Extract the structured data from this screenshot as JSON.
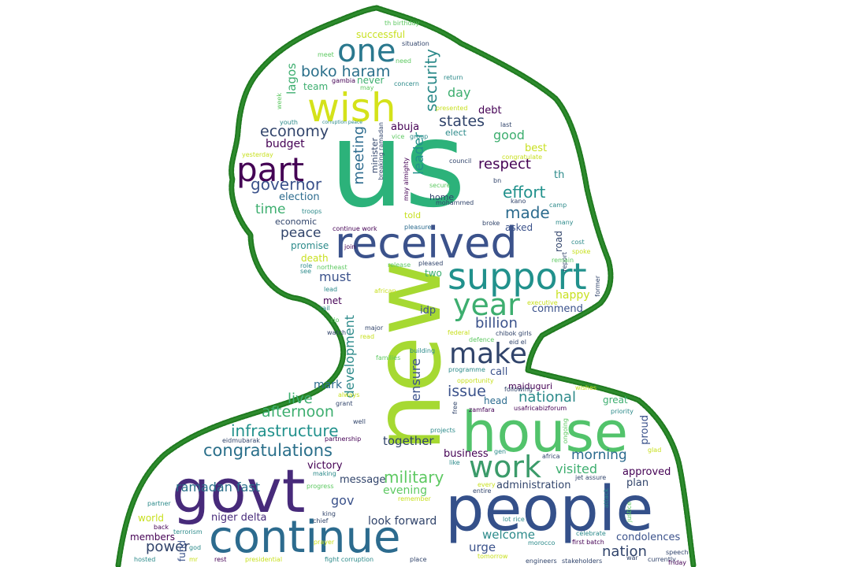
{
  "palette": {
    "outline": "#1f7a1f",
    "background": "#ffffff",
    "word_colors": [
      "#440154",
      "#3b528b",
      "#21918c",
      "#5ec962",
      "#c8e020",
      "#fde725"
    ]
  },
  "words": [
    "us",
    "new",
    "people",
    "house",
    "govt",
    "continue",
    "received",
    "support",
    "wish",
    "part",
    "one",
    "year",
    "make",
    "work",
    "congratulations",
    "infrastructure",
    "military",
    "security",
    "governor",
    "economy",
    "boko haram",
    "states",
    "respect",
    "effort",
    "made",
    "billion",
    "national",
    "afternoon",
    "issue",
    "visited",
    "nation",
    "morning",
    "ramadan fast",
    "niger delta",
    "power",
    "condolences",
    "administration",
    "welcome",
    "urge",
    "look forward",
    "meeting",
    "leader",
    "development",
    "ensure",
    "together",
    "live",
    "mark",
    "message",
    "victory",
    "gov",
    "evening",
    "budget",
    "time",
    "peace",
    "must",
    "election",
    "lagos",
    "day",
    "good",
    "best",
    "happy",
    "th",
    "successful",
    "abuja",
    "minister",
    "debt",
    "commend",
    "idp",
    "two",
    "approved",
    "plan",
    "business",
    "great",
    "head",
    "call",
    "proud",
    "members",
    "world",
    "fund",
    "maiduguri",
    "asked",
    "told",
    "home",
    "met",
    "death",
    "promise",
    "economic",
    "team",
    "never",
    "road",
    "pleasure",
    "continue work",
    "elect",
    "breaking ramadan",
    "may almighty",
    "mohammed",
    "council",
    "secure",
    "vice",
    "group",
    "th birthday",
    "situation",
    "need",
    "meet",
    "gambia",
    "may",
    "concern",
    "return",
    "presented",
    "last",
    "congratulate",
    "bn",
    "kano",
    "camp",
    "many",
    "cost",
    "report",
    "spoke",
    "remain",
    "former",
    "executive",
    "chibok girls",
    "eid el",
    "defence",
    "federal",
    "african",
    "major",
    "watch",
    "release",
    "pleased",
    "join",
    "broke",
    "troops",
    "yesterday",
    "youth",
    "week",
    "corruption peace",
    "northeast",
    "role",
    "see",
    "lead",
    "rail",
    "rio",
    "read",
    "building",
    "families",
    "programme",
    "opportunity",
    "following",
    "usafricabizforum",
    "zamfara",
    "free",
    "grant",
    "always",
    "wishes",
    "well",
    "partnership",
    "eidmubarak",
    "projects",
    "gen",
    "rice",
    "africa",
    "like",
    "ongoing",
    "priority",
    "glad",
    "making",
    "progress",
    "king",
    "entire",
    "every",
    "jet assure",
    "remember",
    "lot",
    "first batch",
    "attack",
    "justice",
    "celebrate",
    "morocco",
    "terrorism",
    "god",
    "chief",
    "prayer",
    "partner",
    "back",
    "hosted",
    "mr",
    "rest",
    "presidential",
    "fight corruption",
    "place",
    "tomorrow",
    "engineers",
    "stakeholders",
    "war",
    "currently",
    "speech",
    "friday"
  ]
}
